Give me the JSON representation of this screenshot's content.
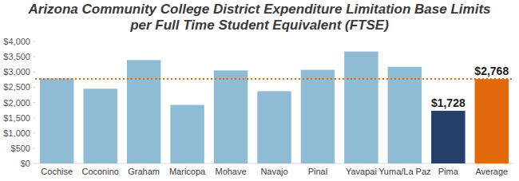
{
  "chart_data": {
    "type": "bar",
    "title": "Arizona Community College District Expenditure Limitation Base Limits per Full Time Student Equivalent (FTSE)",
    "categories": [
      "Cochise",
      "Coconino",
      "Graham",
      "Maricopa",
      "Mohave",
      "Navajo",
      "Pinal",
      "Yavapai",
      "Yuma/La Paz",
      "Pima",
      "Average"
    ],
    "values": [
      2790,
      2450,
      3390,
      1920,
      3050,
      2370,
      3070,
      3670,
      3170,
      1728,
      2768
    ],
    "value_labels": [
      null,
      null,
      null,
      null,
      null,
      null,
      null,
      null,
      null,
      "$1,728",
      "$2,768"
    ],
    "colors": [
      "#8fbcd4",
      "#8fbcd4",
      "#8fbcd4",
      "#8fbcd4",
      "#8fbcd4",
      "#8fbcd4",
      "#8fbcd4",
      "#8fbcd4",
      "#8fbcd4",
      "#27406b",
      "#e3690d"
    ],
    "data_labels": true,
    "ylim": [
      0,
      4000
    ],
    "yticks": [
      {
        "value": 0,
        "label": "$0"
      },
      {
        "value": 500,
        "label": "$500"
      },
      {
        "value": 1000,
        "label": "$1,000"
      },
      {
        "value": 1500,
        "label": "$1,500"
      },
      {
        "value": 2000,
        "label": "$2,000"
      },
      {
        "value": 2500,
        "label": "$2,500"
      },
      {
        "value": 3000,
        "label": "$3,000"
      },
      {
        "value": 3500,
        "label": "$3,500"
      },
      {
        "value": 4000,
        "label": "$4,000"
      }
    ],
    "grid": false
  }
}
